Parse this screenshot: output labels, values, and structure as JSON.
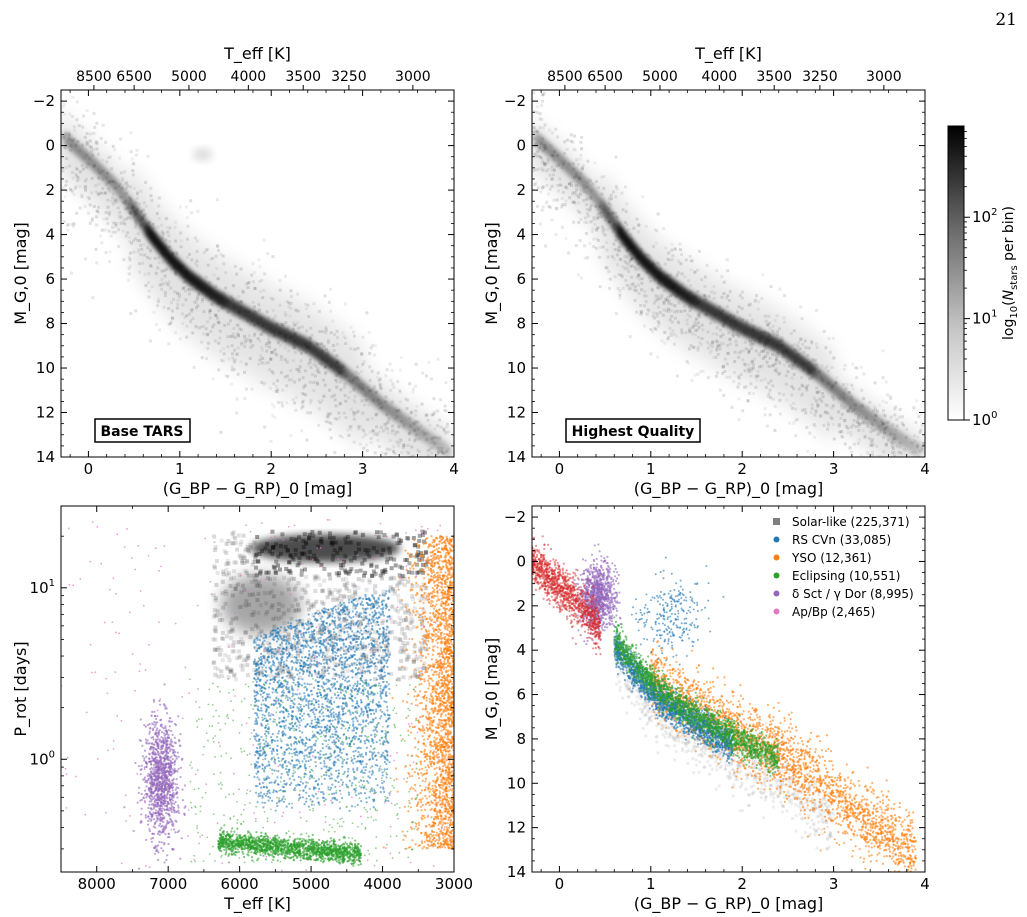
{
  "page_number": "21",
  "colorbar": {
    "label": "log10(N_stars per bin)",
    "tick_labels": [
      "10^0",
      "10^1",
      "10^2"
    ],
    "tick_values": [
      0,
      1,
      2
    ],
    "range": [
      0,
      2.9
    ]
  },
  "chart_data": [
    {
      "id": "hrd-base",
      "type": "heatmap",
      "title": "",
      "xlabel": "(G_BP − G_RP)_0 [mag]",
      "ylabel": "M_G,0 [mag]",
      "xlim": [
        -0.3,
        4.0
      ],
      "ylim": [
        14,
        -2.5
      ],
      "y_inverted": true,
      "xticks": [
        0,
        1,
        2,
        3,
        4
      ],
      "yticks": [
        -2,
        0,
        2,
        4,
        6,
        8,
        10,
        12,
        14
      ],
      "top_axis": {
        "label": "T_eff [K]",
        "ticks": [
          {
            "label": "8500",
            "color": 0.06
          },
          {
            "label": "6500",
            "color": 0.5
          },
          {
            "label": "5000",
            "color": 1.1
          },
          {
            "label": "4000",
            "color": 1.75
          },
          {
            "label": "3500",
            "color": 2.35
          },
          {
            "label": "3250",
            "color": 2.85
          },
          {
            "label": "3000",
            "color": 3.55
          }
        ]
      },
      "annotation": "Base TARS",
      "density_ridge": [
        [
          -0.3,
          -0.5
        ],
        [
          0.0,
          0.6
        ],
        [
          0.3,
          1.8
        ],
        [
          0.5,
          2.9
        ],
        [
          0.7,
          4.1
        ],
        [
          0.9,
          5.1
        ],
        [
          1.1,
          5.9
        ],
        [
          1.4,
          6.8
        ],
        [
          1.7,
          7.5
        ],
        [
          2.0,
          8.2
        ],
        [
          2.4,
          9.0
        ],
        [
          2.8,
          10.2
        ],
        [
          3.2,
          11.6
        ],
        [
          3.6,
          12.8
        ],
        [
          4.0,
          13.9
        ]
      ],
      "red_clump": {
        "x": 1.25,
        "y": 0.4
      }
    },
    {
      "id": "hrd-highest-quality",
      "type": "heatmap",
      "title": "",
      "xlabel": "(G_BP − G_RP)_0 [mag]",
      "ylabel": "M_G,0 [mag]",
      "xlim": [
        -0.3,
        4.0
      ],
      "ylim": [
        14,
        -2.5
      ],
      "y_inverted": true,
      "xticks": [
        0,
        1,
        2,
        3,
        4
      ],
      "yticks": [
        -2,
        0,
        2,
        4,
        6,
        8,
        10,
        12,
        14
      ],
      "top_axis": {
        "label": "T_eff [K]",
        "ticks": [
          {
            "label": "8500",
            "color": 0.06
          },
          {
            "label": "6500",
            "color": 0.5
          },
          {
            "label": "5000",
            "color": 1.1
          },
          {
            "label": "4000",
            "color": 1.75
          },
          {
            "label": "3500",
            "color": 2.35
          },
          {
            "label": "3250",
            "color": 2.85
          },
          {
            "label": "3000",
            "color": 3.55
          }
        ]
      },
      "annotation": "Highest Quality",
      "density_ridge": [
        [
          -0.3,
          -0.5
        ],
        [
          0.0,
          0.6
        ],
        [
          0.3,
          1.8
        ],
        [
          0.5,
          2.9
        ],
        [
          0.7,
          4.1
        ],
        [
          0.9,
          5.1
        ],
        [
          1.1,
          5.9
        ],
        [
          1.4,
          6.8
        ],
        [
          1.7,
          7.5
        ],
        [
          2.0,
          8.2
        ],
        [
          2.4,
          9.0
        ],
        [
          2.8,
          10.2
        ],
        [
          3.2,
          11.6
        ],
        [
          3.6,
          12.8
        ],
        [
          3.9,
          13.6
        ]
      ]
    },
    {
      "id": "prot-teff",
      "type": "scatter",
      "title": "",
      "xlabel": "T_eff [K]",
      "ylabel": "P_rot [days]",
      "xlim": [
        8500,
        3000
      ],
      "ylim": [
        0.22,
        30
      ],
      "y_log": true,
      "xticks": [
        8000,
        7000,
        6000,
        5000,
        4000,
        3000
      ],
      "yticks": [
        {
          "value": 1,
          "label": "10^0"
        },
        {
          "value": 10,
          "label": "10^1"
        }
      ],
      "groups": [
        {
          "class": "Solar-like",
          "color": "#333333",
          "teff": [
            3400,
            6400
          ],
          "prot": [
            3,
            22
          ]
        },
        {
          "class": "RS CVn",
          "color": "#1f77b4",
          "teff": [
            3900,
            5800
          ],
          "prot": [
            0.4,
            10
          ]
        },
        {
          "class": "YSO",
          "color": "#ff7f0e",
          "teff": [
            3000,
            3700
          ],
          "prot": [
            0.3,
            22
          ]
        },
        {
          "class": "Eclipsing",
          "color": "#2ca02c",
          "teff": [
            4200,
            6300
          ],
          "prot": [
            0.26,
            0.42
          ]
        },
        {
          "class": "δ Sct / γ Dor",
          "color": "#9467bd",
          "teff": [
            6800,
            7500
          ],
          "prot": [
            0.35,
            2.5
          ]
        },
        {
          "class": "Ap/Bp",
          "color": "#e377c2",
          "teff": [
            5500,
            8500
          ],
          "prot": [
            0.22,
            25
          ]
        }
      ]
    },
    {
      "id": "hrd-classes",
      "type": "scatter",
      "title": "",
      "xlabel": "(G_BP − G_RP)_0 [mag]",
      "ylabel": "M_G,0 [mag]",
      "xlim": [
        -0.3,
        4.0
      ],
      "ylim": [
        14,
        -2.5
      ],
      "y_inverted": true,
      "xticks": [
        0,
        1,
        2,
        3,
        4
      ],
      "yticks": [
        -2,
        0,
        2,
        4,
        6,
        8,
        10,
        12,
        14
      ],
      "legend_position": "top-right",
      "series": [
        {
          "name": "Solar-like (225,371)",
          "color": "#7f7f7f",
          "marker": "square"
        },
        {
          "name": "RS CVn (33,085)",
          "color": "#1f77b4",
          "marker": "circle"
        },
        {
          "name": "YSO (12,361)",
          "color": "#ff7f0e",
          "marker": "circle"
        },
        {
          "name": "Eclipsing (10,551)",
          "color": "#2ca02c",
          "marker": "circle"
        },
        {
          "name": "δ Sct / γ Dor (8,995)",
          "color": "#9467bd",
          "marker": "circle"
        },
        {
          "name": "Ap/Bp (2,465)",
          "color": "#e377c2",
          "marker": "circle"
        }
      ]
    }
  ]
}
